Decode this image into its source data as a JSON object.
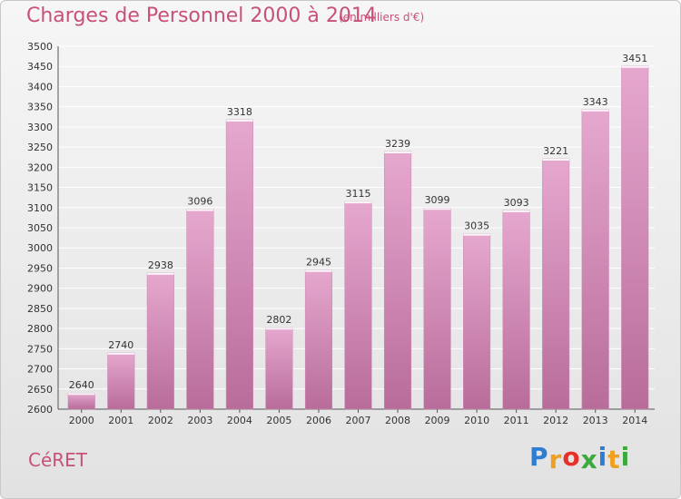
{
  "header": {
    "title": "Charges de Personnel 2000 à 2014",
    "subtitle": "(en milliers d'€)"
  },
  "footer": {
    "commune": "CéRET",
    "brand_letters": [
      "P",
      "r",
      "o",
      "x",
      "i",
      "t",
      "i"
    ],
    "brand_colors": [
      "#2e7dd2",
      "#f0a020",
      "#e8302a",
      "#3aaa3a",
      "#2e7dd2",
      "#f0a020",
      "#3aaa3a"
    ]
  },
  "chart_data": {
    "type": "bar",
    "title": "Charges de Personnel 2000 à 2014",
    "xlabel": "",
    "ylabel": "",
    "categories": [
      "2000",
      "2001",
      "2002",
      "2003",
      "2004",
      "2005",
      "2006",
      "2007",
      "2008",
      "2009",
      "2010",
      "2011",
      "2012",
      "2013",
      "2014"
    ],
    "values": [
      2640,
      2740,
      2938,
      3096,
      3318,
      2802,
      2945,
      3115,
      3239,
      3099,
      3035,
      3093,
      3221,
      3343,
      3451
    ],
    "ylim": [
      2600,
      3500
    ],
    "yticks": [
      2600,
      2650,
      2700,
      2750,
      2800,
      2850,
      2900,
      2950,
      3000,
      3050,
      3100,
      3150,
      3200,
      3250,
      3300,
      3350,
      3400,
      3450,
      3500
    ],
    "grid": true,
    "colors": {
      "bar_top": "#e6a8cf",
      "bar_bottom": "#b86c9a",
      "grid": "#ffffff",
      "text": "#333333"
    }
  }
}
